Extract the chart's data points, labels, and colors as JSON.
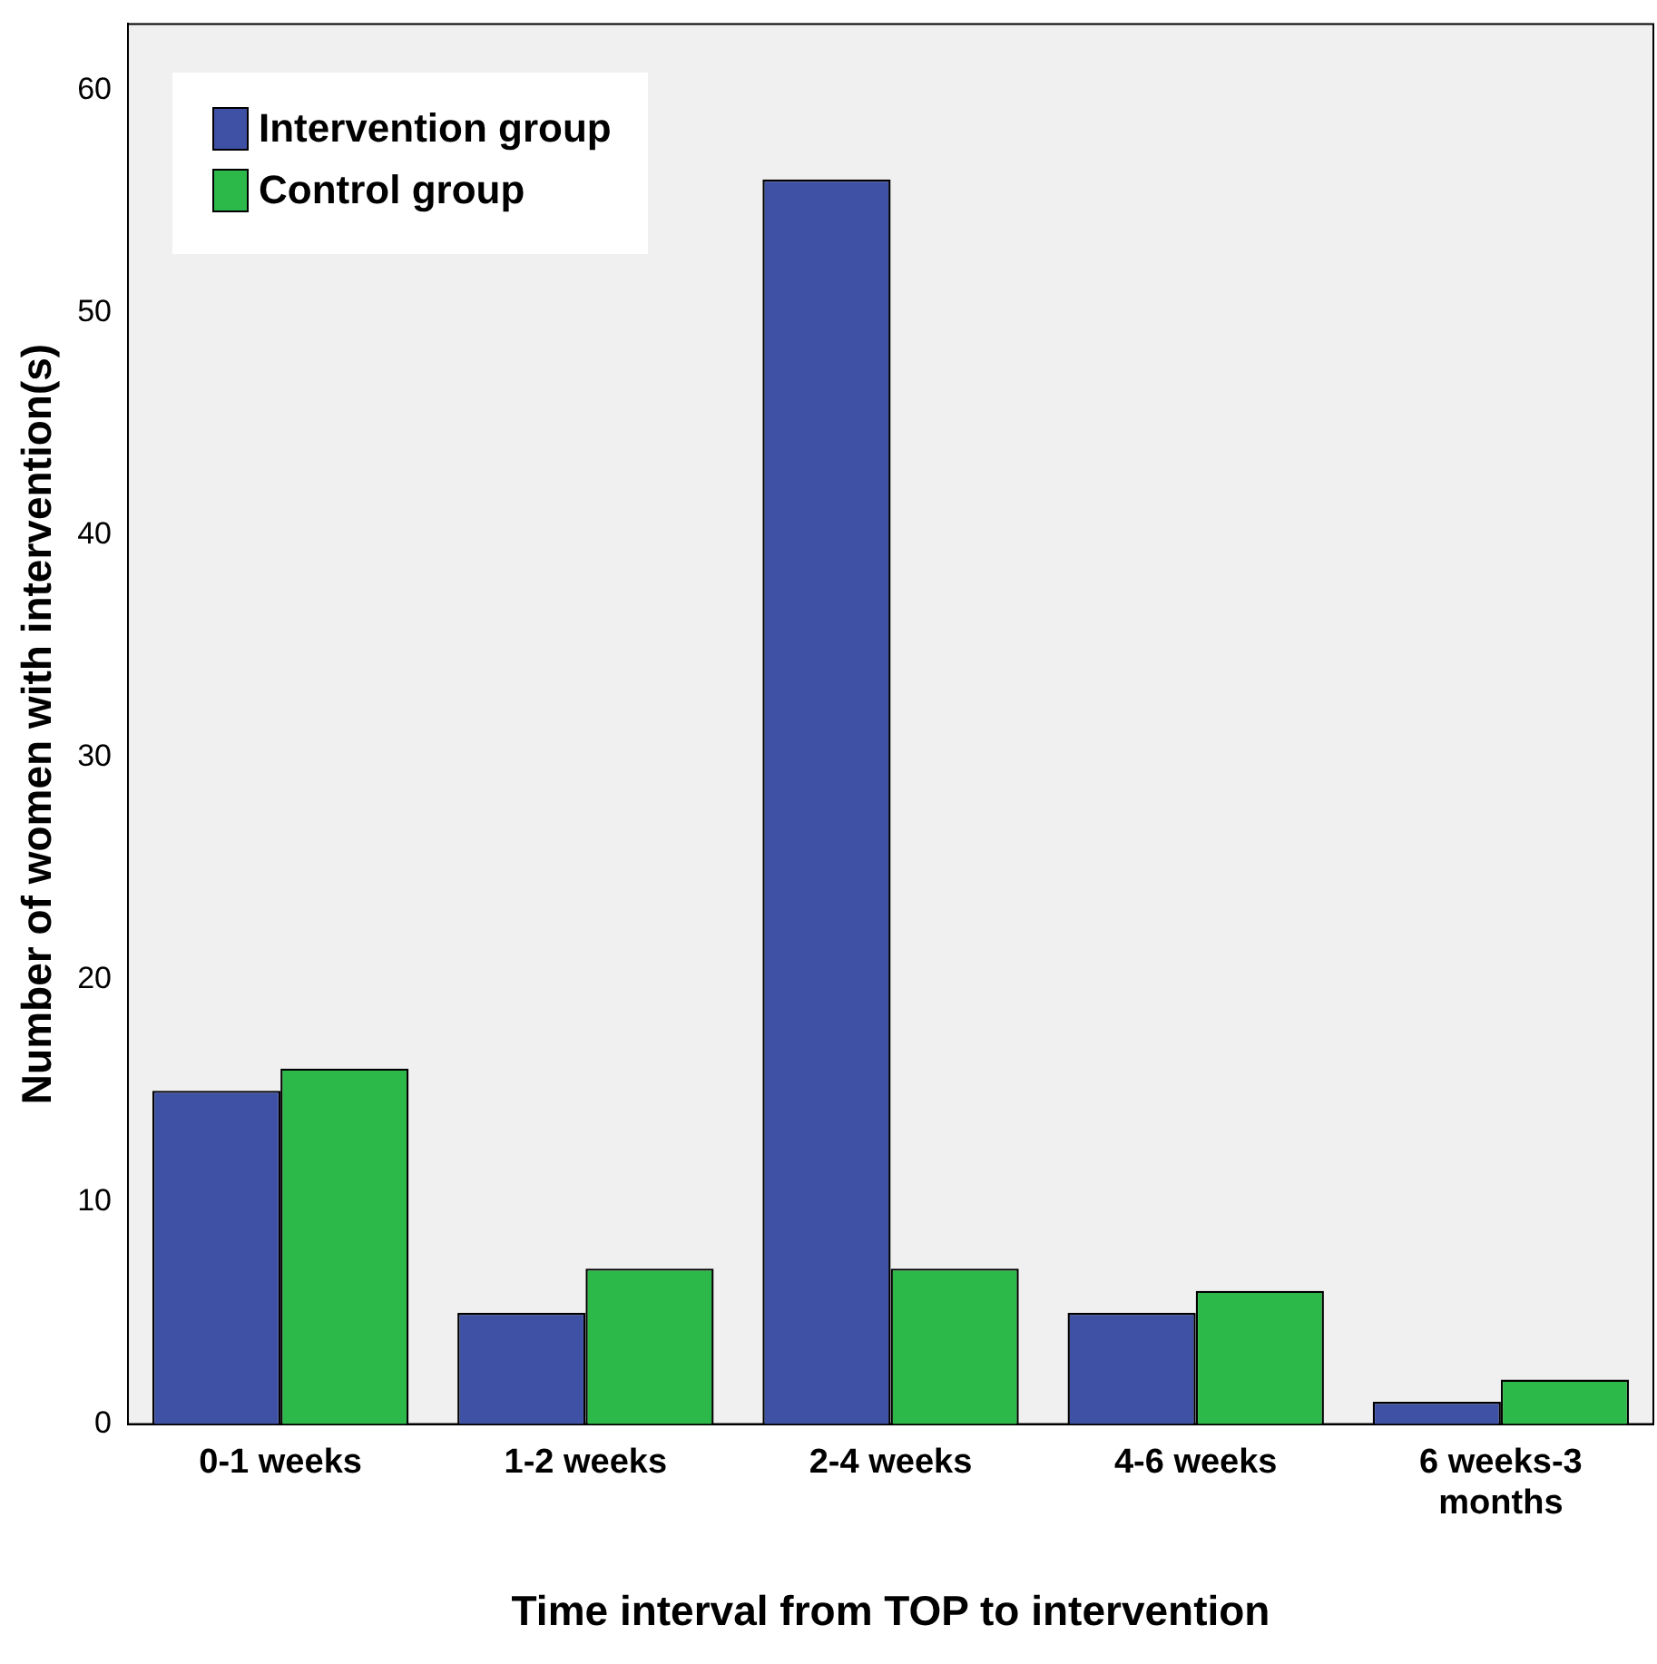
{
  "chart_data": {
    "type": "bar",
    "xlabel": "Time interval from TOP to intervention",
    "ylabel": "Number of women with intervention(s)",
    "categories": [
      "0-1 weeks",
      "1-2 weeks",
      "2-4 weeks",
      "4-6 weeks",
      "6 weeks-3 months"
    ],
    "series": [
      {
        "name": "Intervention group",
        "color": "#3f51a5",
        "values": [
          15,
          5,
          56,
          5,
          1
        ]
      },
      {
        "name": "Control group",
        "color": "#2db84a",
        "values": [
          16,
          7,
          7,
          6,
          2
        ]
      }
    ],
    "ylim": [
      0,
      63
    ],
    "yticks": [
      0,
      10,
      20,
      30,
      40,
      50,
      60
    ],
    "grid": false,
    "legend": "top left"
  }
}
